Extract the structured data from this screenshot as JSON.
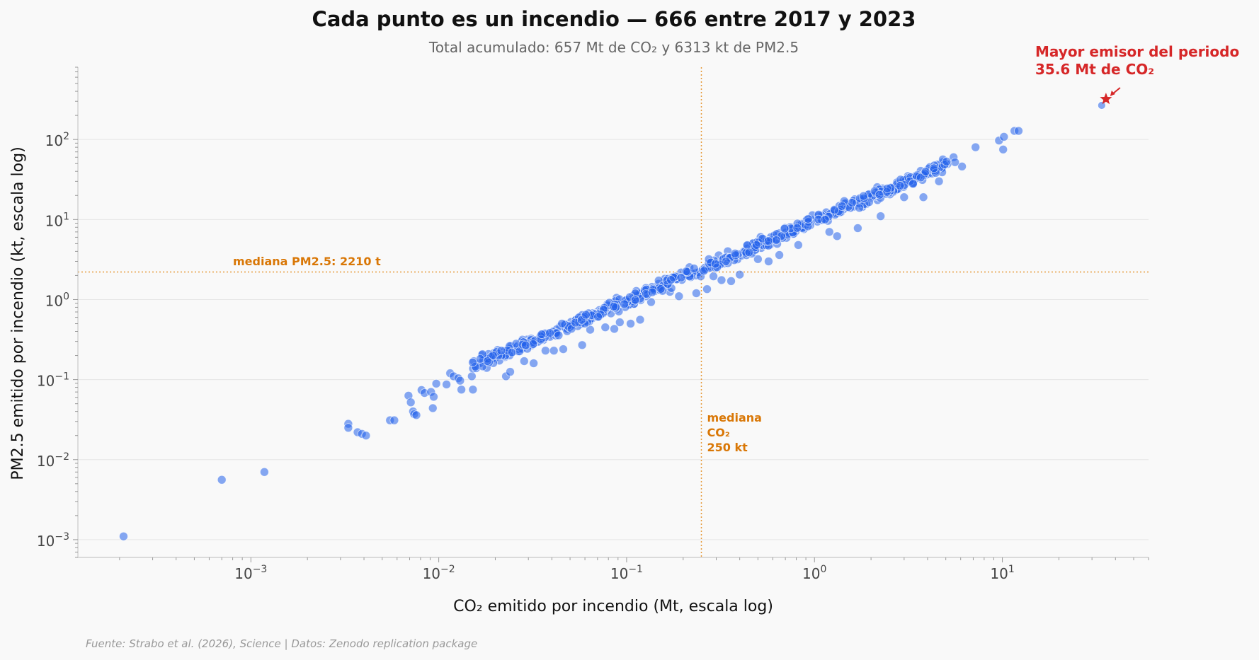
{
  "chart_data": {
    "type": "scatter",
    "title": "Cada punto es un incendio — 666 entre 2017 y 2023",
    "subtitle": "Total acumulado: 657 Mt de CO₂ y 6313 kt de PM2.5",
    "xlabel": "CO₂ emitido por incendio (Mt, escala log)",
    "ylabel": "PM2.5 emitido por incendio (kt, escala log)",
    "xscale": "log",
    "yscale": "log",
    "xlim": [
      0.00012,
      60
    ],
    "ylim": [
      0.0006,
      800
    ],
    "grid": "horizontal",
    "x_ticks": [
      {
        "value": 0.001,
        "base": "10",
        "exp": "−3"
      },
      {
        "value": 0.01,
        "base": "10",
        "exp": "−2"
      },
      {
        "value": 0.1,
        "base": "10",
        "exp": "−1"
      },
      {
        "value": 1,
        "base": "10",
        "exp": "0"
      },
      {
        "value": 10,
        "base": "10",
        "exp": "1"
      }
    ],
    "y_ticks": [
      {
        "value": 0.001,
        "base": "10",
        "exp": "−3"
      },
      {
        "value": 0.01,
        "base": "10",
        "exp": "−2"
      },
      {
        "value": 0.1,
        "base": "10",
        "exp": "−1"
      },
      {
        "value": 1,
        "base": "10",
        "exp": "0"
      },
      {
        "value": 10,
        "base": "10",
        "exp": "1"
      },
      {
        "value": 100,
        "base": "10",
        "exp": "2"
      }
    ],
    "median_x": {
      "value": 0.25,
      "label_lines": [
        "mediana",
        "CO₂",
        "250 kt"
      ]
    },
    "median_y": {
      "value": 2.21,
      "label": "mediana PM2.5: 2210 t"
    },
    "highlight": {
      "x": 35.6,
      "y": 320,
      "label_lines": [
        "Mayor emisor del periodo",
        "35.6 Mt de CO₂"
      ]
    },
    "colors": {
      "points": "#2563eb",
      "median": "#e69a3a",
      "median_text": "#d97706",
      "highlight": "#d62728"
    },
    "n_points": 666,
    "series": [
      {
        "values": [
          [
            0.00021,
            0.0011
          ],
          [
            0.0007,
            0.0056
          ],
          [
            0.00118,
            0.007
          ],
          [
            0.0033,
            0.028
          ],
          [
            0.0033,
            0.025
          ],
          [
            0.0037,
            0.022
          ],
          [
            0.0039,
            0.021
          ],
          [
            0.0041,
            0.02
          ],
          [
            0.0055,
            0.031
          ],
          [
            0.0058,
            0.031
          ],
          [
            0.0069,
            0.063
          ],
          [
            0.0071,
            0.052
          ],
          [
            0.0073,
            0.04
          ],
          [
            0.0074,
            0.037
          ],
          [
            0.0076,
            0.036
          ],
          [
            0.0081,
            0.074
          ],
          [
            0.0084,
            0.068
          ],
          [
            0.0091,
            0.07
          ],
          [
            0.0093,
            0.044
          ],
          [
            0.0094,
            0.061
          ],
          [
            0.0097,
            0.089
          ],
          [
            0.011,
            0.087
          ],
          [
            0.0115,
            0.12
          ],
          [
            0.012,
            0.11
          ],
          [
            0.0127,
            0.104
          ],
          [
            0.013,
            0.097
          ],
          [
            0.0132,
            0.075
          ],
          [
            0.0152,
            0.075
          ],
          [
            0.015,
            0.11
          ],
          [
            0.018,
            0.14
          ],
          [
            0.0228,
            0.11
          ],
          [
            0.024,
            0.125
          ],
          [
            0.0285,
            0.17
          ],
          [
            0.032,
            0.16
          ],
          [
            0.037,
            0.23
          ],
          [
            0.041,
            0.23
          ],
          [
            0.046,
            0.24
          ],
          [
            0.058,
            0.27
          ],
          [
            0.064,
            0.42
          ],
          [
            0.077,
            0.45
          ],
          [
            0.086,
            0.43
          ],
          [
            0.092,
            0.52
          ],
          [
            0.105,
            0.5
          ],
          [
            0.118,
            0.56
          ],
          [
            0.135,
            0.93
          ],
          [
            0.17,
            1.25
          ],
          [
            0.19,
            1.1
          ],
          [
            0.235,
            1.2
          ],
          [
            0.268,
            1.35
          ],
          [
            0.29,
            1.95
          ],
          [
            0.32,
            1.75
          ],
          [
            0.36,
            1.7
          ],
          [
            0.4,
            2.05
          ],
          [
            0.5,
            3.2
          ],
          [
            0.57,
            3.0
          ],
          [
            0.65,
            3.6
          ],
          [
            0.82,
            4.8
          ],
          [
            1.2,
            7.0
          ],
          [
            1.32,
            6.2
          ],
          [
            1.7,
            7.8
          ],
          [
            2.25,
            11
          ],
          [
            3.0,
            19
          ],
          [
            3.8,
            19
          ],
          [
            4.6,
            30
          ],
          [
            6.1,
            46
          ],
          [
            10.1,
            75
          ],
          [
            7.2,
            80
          ],
          [
            9.6,
            97
          ],
          [
            10.2,
            108
          ],
          [
            11.6,
            128
          ],
          [
            12.2,
            128
          ],
          [
            5.5,
            60
          ],
          [
            5.6,
            52
          ]
        ]
      }
    ]
  },
  "source": "Fuente: Strabo et al. (2026), Science | Datos: Zenodo replication package"
}
